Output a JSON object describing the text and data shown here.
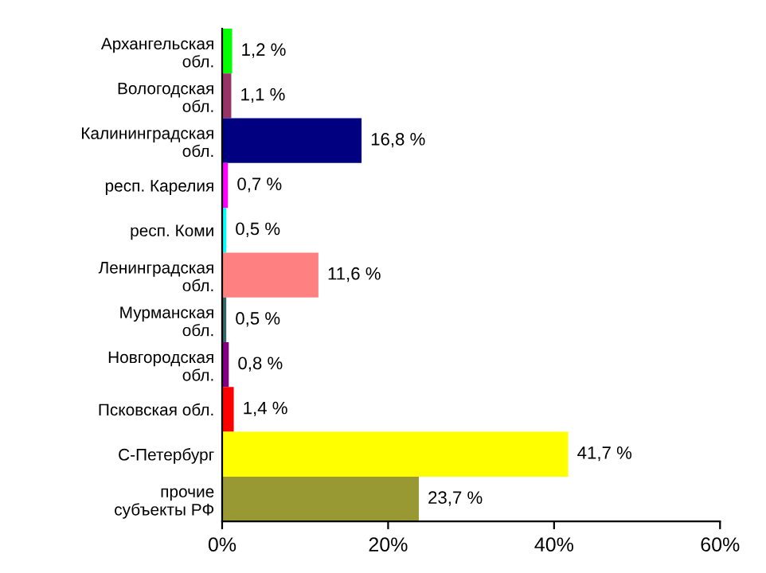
{
  "chart_data": {
    "type": "bar",
    "orientation": "horizontal",
    "categories": [
      "Архангельская\nобл.",
      "Вологодская\nобл.",
      "Калининградская\nобл.",
      "респ. Карелия",
      "респ. Коми",
      "Ленинградская\nобл.",
      "Мурманская\nобл.",
      "Новгородская\nобл.",
      "Псковская обл.",
      "С-Петербург",
      "прочие\nсубъекты РФ"
    ],
    "values": [
      1.2,
      1.1,
      16.8,
      0.7,
      0.5,
      11.6,
      0.5,
      0.8,
      1.4,
      41.7,
      23.7
    ],
    "colors": [
      "#00ff00",
      "#993366",
      "#000080",
      "#ff00ff",
      "#00ffff",
      "#ff8080",
      "#336666",
      "#800080",
      "#ff0000",
      "#ffff00",
      "#999933"
    ],
    "value_labels": [
      "1,2 %",
      "1,1 %",
      "16,8 %",
      "0,7 %",
      "0,5 %",
      "11,6 %",
      "0,5 %",
      "0,8 %",
      "1,4 %",
      "41,7 %",
      "23,7 %"
    ],
    "xlim": [
      0,
      60
    ],
    "xticks": [
      {
        "value": 0,
        "label": "0%"
      },
      {
        "value": 20,
        "label": "20%"
      },
      {
        "value": 40,
        "label": "40%"
      },
      {
        "value": 60,
        "label": "60%"
      }
    ],
    "grid": false,
    "legend": false
  }
}
